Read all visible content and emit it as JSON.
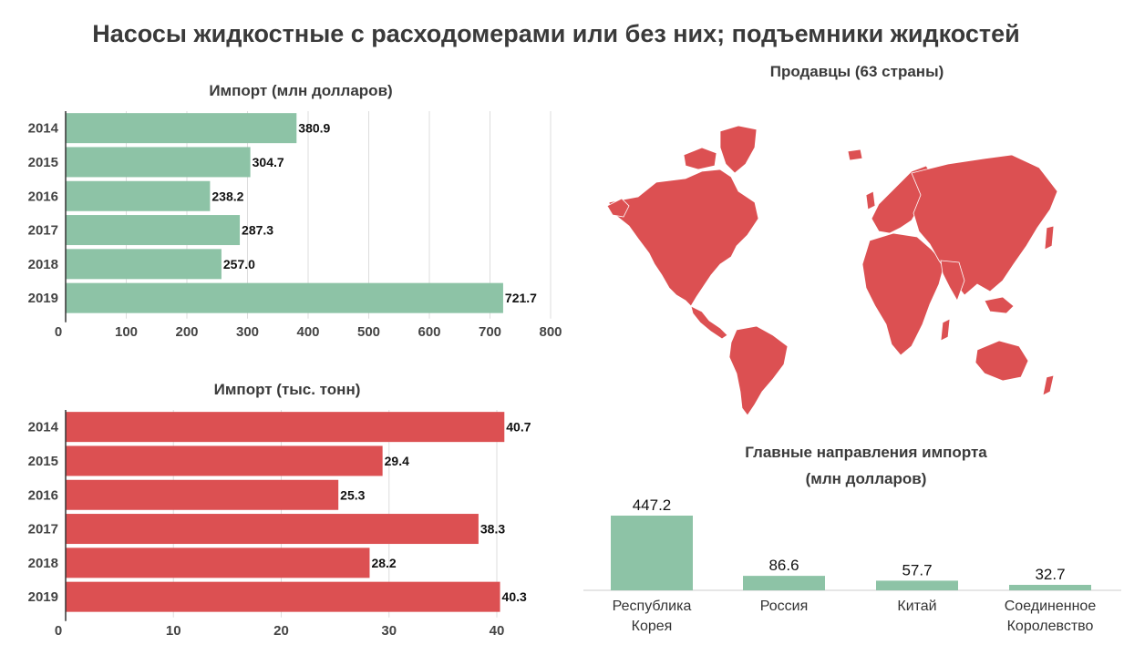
{
  "title": "Насосы жидкостные с расходомерами или без них; подъемники жидкостей",
  "colors": {
    "green": "#8dc3a6",
    "red": "#dc5052",
    "grid": "#dddddd",
    "axis": "#333333",
    "text": "#222222"
  },
  "chart_data": [
    {
      "type": "bar",
      "orientation": "horizontal",
      "title": "Импорт (млн долларов)",
      "categories": [
        "2014",
        "2015",
        "2016",
        "2017",
        "2018",
        "2019"
      ],
      "values": [
        380.9,
        304.7,
        238.2,
        287.3,
        257.0,
        721.7
      ],
      "value_labels": [
        "380.9",
        "304.7",
        "238.2",
        "287.3",
        "257.0",
        "721.7"
      ],
      "xlim": [
        0,
        800
      ],
      "xticks": [
        "0",
        "100",
        "200",
        "300",
        "400",
        "500",
        "600",
        "700",
        "800"
      ],
      "grid": true
    },
    {
      "type": "bar",
      "orientation": "horizontal",
      "title": "Импорт (тыс. тонн)",
      "categories": [
        "2014",
        "2015",
        "2016",
        "2017",
        "2018",
        "2019"
      ],
      "values": [
        40.7,
        29.4,
        25.3,
        38.3,
        28.2,
        40.3
      ],
      "value_labels": [
        "40.7",
        "29.4",
        "25.3",
        "38.3",
        "28.2",
        "40.3"
      ],
      "xlim": [
        0,
        45
      ],
      "xticks": [
        "0",
        "10",
        "20",
        "30",
        "40"
      ],
      "grid": true
    },
    {
      "type": "bar",
      "orientation": "vertical",
      "title_lines": [
        "Главные направления импорта",
        "(млн долларов)"
      ],
      "categories": [
        [
          "Республика",
          "Корея"
        ],
        [
          "Россия"
        ],
        [
          "Китай"
        ],
        [
          "Соединенное",
          "Королевство"
        ]
      ],
      "values": [
        447.2,
        86.6,
        57.7,
        32.7
      ],
      "value_labels": [
        "447.2",
        "86.6",
        "57.7",
        "32.7"
      ],
      "ylim": [
        0,
        447.2
      ]
    }
  ],
  "map": {
    "title": "Продавцы (63 страны)",
    "color": "#dc5052"
  }
}
